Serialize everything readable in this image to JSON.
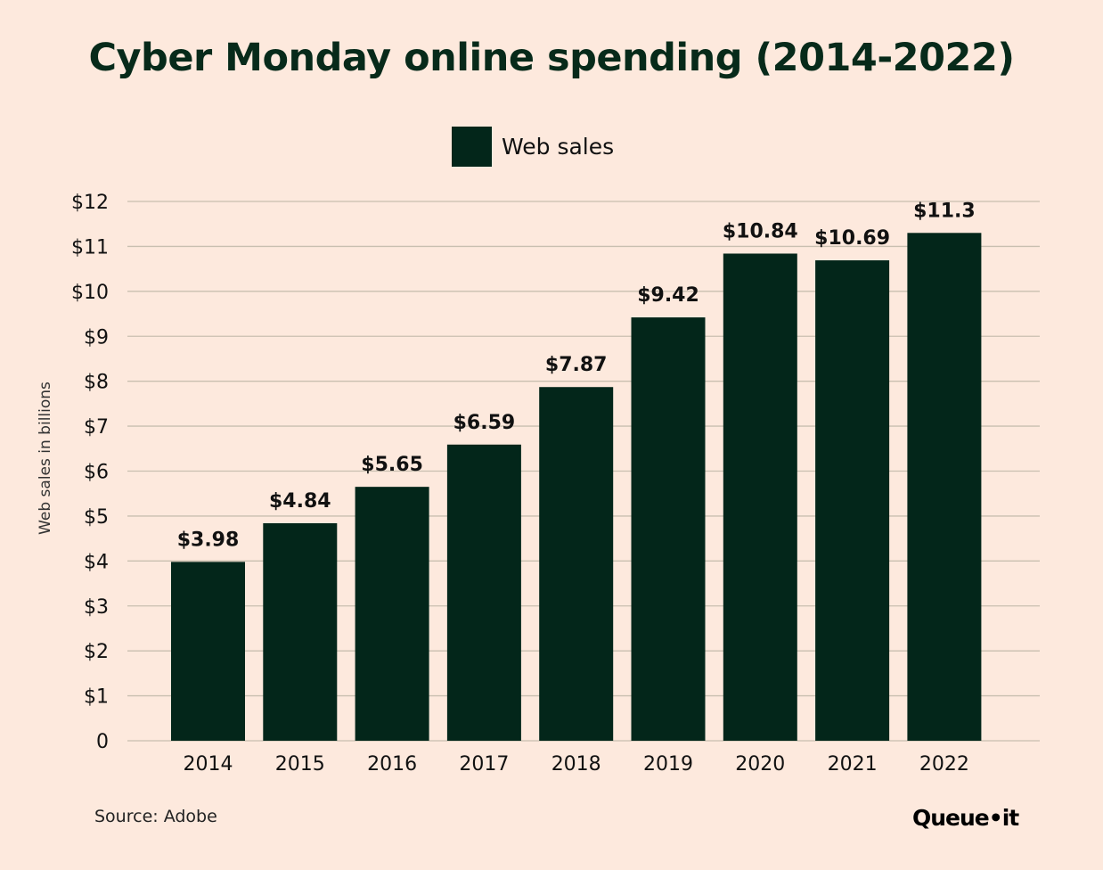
{
  "chart_data": {
    "type": "bar",
    "title": "Cyber Monday online spending (2014-2022)",
    "categories": [
      "2014",
      "2015",
      "2016",
      "2017",
      "2018",
      "2019",
      "2020",
      "2021",
      "2022"
    ],
    "series": [
      {
        "name": "Web sales",
        "values": [
          3.98,
          4.84,
          5.65,
          6.59,
          7.87,
          9.42,
          10.84,
          10.69,
          11.3
        ],
        "color": "#03261a"
      }
    ],
    "data_labels": [
      "$3.98",
      "$4.84",
      "$5.65",
      "$6.59",
      "$7.87",
      "$9.42",
      "$10.84",
      "$10.69",
      "$11.3"
    ],
    "xlabel": "",
    "ylabel": "Web sales in billions",
    "ylim": [
      0,
      12
    ],
    "yticks": [
      0,
      1,
      2,
      3,
      4,
      5,
      6,
      7,
      8,
      9,
      10,
      11,
      12
    ],
    "ytick_labels": [
      "0",
      "$1",
      "$2",
      "$3",
      "$4",
      "$5",
      "$6",
      "$7",
      "$8",
      "$9",
      "$10",
      "$11",
      "$12"
    ],
    "grid": true,
    "legend": "top-center"
  },
  "source": "Source: Adobe",
  "logo": "Queue•it",
  "colors": {
    "background": "#fde9dd",
    "bar": "#03261a",
    "grid": "#c9bfb0"
  }
}
